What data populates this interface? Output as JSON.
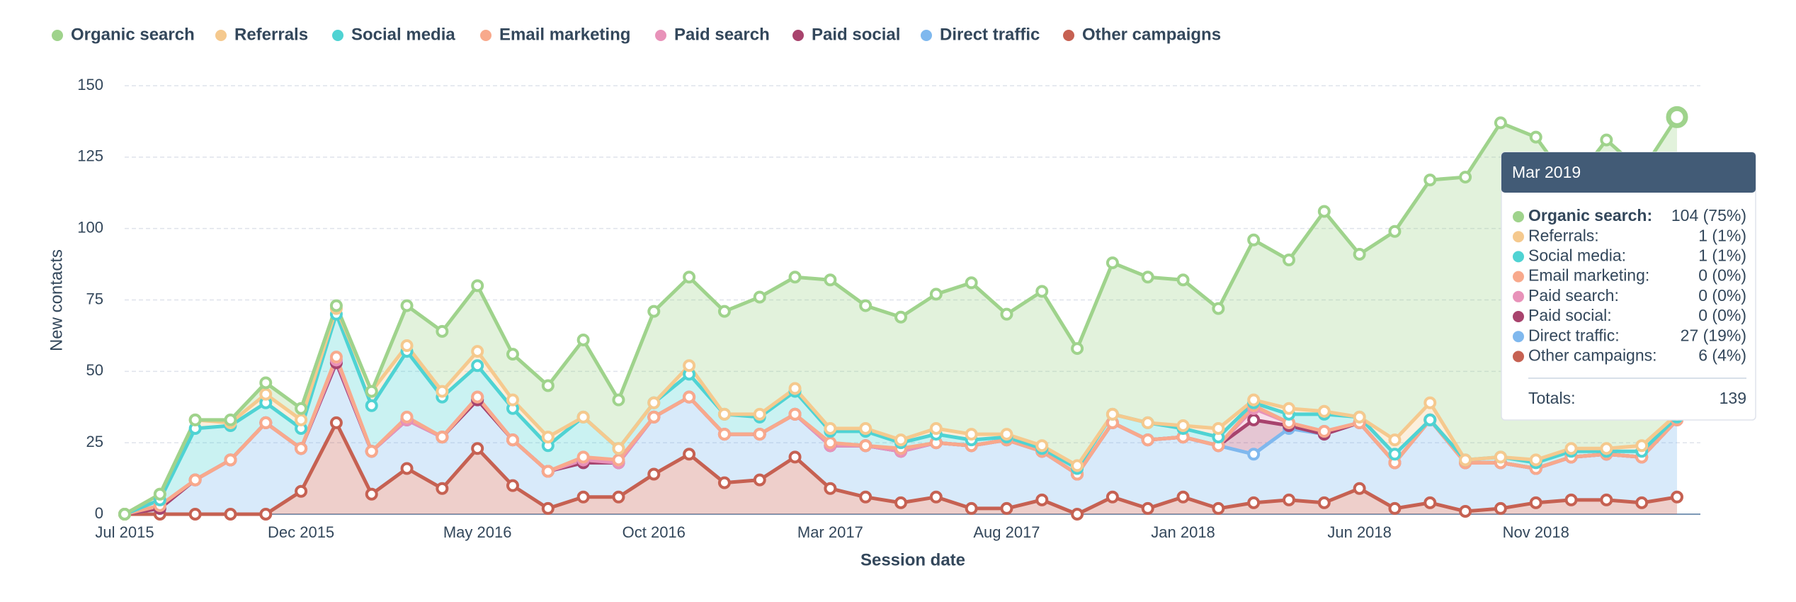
{
  "chart_data": {
    "type": "stacked_area",
    "ylabel": "New contacts",
    "xlabel": "Session date",
    "categories": [
      "Jul 2015",
      null,
      null,
      null,
      null,
      "Dec 2015",
      null,
      null,
      null,
      null,
      "May 2016",
      null,
      null,
      null,
      null,
      "Oct 2016",
      null,
      null,
      null,
      null,
      "Mar 2017",
      null,
      null,
      null,
      null,
      "Aug 2017",
      null,
      null,
      null,
      null,
      "Jan 2018",
      null,
      null,
      null,
      null,
      "Jun 2018",
      null,
      null,
      null,
      null,
      "Nov 2018",
      null,
      null,
      null,
      null
    ],
    "ylim": [
      0,
      150
    ],
    "yticks": [
      0,
      25,
      50,
      75,
      100,
      125,
      150
    ],
    "grid": true,
    "legend": "top-left",
    "series": [
      {
        "name": "Other campaigns",
        "color": "#c66152",
        "values": [
          0,
          0,
          0,
          0,
          0,
          8,
          32,
          7,
          16,
          9,
          23,
          10,
          2,
          6,
          6,
          14,
          21,
          11,
          12,
          20,
          9,
          6,
          4,
          6,
          2,
          2,
          5,
          0,
          6,
          2,
          6,
          2,
          4,
          5,
          4,
          9,
          2,
          4,
          1,
          2,
          4,
          5,
          5,
          4,
          6
        ]
      },
      {
        "name": "Direct traffic",
        "color": "#7fb8ee",
        "values": [
          0,
          2,
          12,
          19,
          32,
          15,
          21,
          15,
          17,
          18,
          17,
          16,
          13,
          12,
          12,
          20,
          20,
          17,
          16,
          15,
          15,
          18,
          18,
          19,
          22,
          24,
          17,
          14,
          26,
          24,
          21,
          22,
          17,
          25,
          24,
          23,
          16,
          29,
          17,
          16,
          12,
          15,
          16,
          16,
          27
        ]
      },
      {
        "name": "Paid social",
        "color": "#a8436d",
        "values": [
          0,
          0,
          0,
          0,
          0,
          0,
          0,
          0,
          0,
          0,
          0,
          0,
          0,
          0,
          0,
          0,
          0,
          0,
          0,
          0,
          0,
          0,
          0,
          0,
          0,
          0,
          0,
          0,
          0,
          0,
          0,
          0,
          12,
          1,
          0,
          0,
          0,
          0,
          0,
          0,
          0,
          0,
          0,
          0,
          0
        ]
      },
      {
        "name": "Paid search",
        "color": "#e892b9",
        "values": [
          0,
          1,
          0,
          0,
          0,
          0,
          1,
          0,
          0,
          0,
          1,
          0,
          0,
          1,
          0,
          0,
          0,
          0,
          0,
          0,
          0,
          0,
          0,
          0,
          0,
          0,
          0,
          0,
          0,
          0,
          0,
          0,
          4,
          1,
          1,
          0,
          0,
          0,
          0,
          0,
          0,
          0,
          0,
          0,
          0
        ]
      },
      {
        "name": "Email marketing",
        "color": "#f8a98c",
        "values": [
          0,
          0,
          0,
          0,
          0,
          0,
          1,
          0,
          1,
          0,
          0,
          0,
          0,
          1,
          1,
          0,
          0,
          0,
          0,
          0,
          1,
          0,
          1,
          0,
          0,
          0,
          0,
          0,
          0,
          0,
          0,
          0,
          1,
          0,
          0,
          0,
          0,
          0,
          0,
          0,
          0,
          0,
          0,
          0,
          0
        ]
      },
      {
        "name": "Social media",
        "color": "#4fd3d3",
        "values": [
          0,
          2,
          18,
          12,
          7,
          7,
          15,
          16,
          23,
          14,
          11,
          11,
          9,
          14,
          4,
          5,
          8,
          7,
          6,
          8,
          4,
          5,
          2,
          3,
          2,
          1,
          1,
          2,
          3,
          6,
          3,
          3,
          1,
          3,
          6,
          2,
          3,
          0,
          1,
          2,
          2,
          2,
          1,
          2,
          1
        ]
      },
      {
        "name": "Referrals",
        "color": "#f5c98e",
        "values": [
          0,
          2,
          3,
          1,
          3,
          3,
          2,
          5,
          2,
          2,
          5,
          3,
          3,
          0,
          0,
          0,
          3,
          0,
          1,
          1,
          1,
          1,
          1,
          2,
          2,
          1,
          1,
          1,
          0,
          0,
          1,
          3,
          1,
          2,
          1,
          0,
          5,
          6,
          0,
          0,
          1,
          1,
          1,
          2,
          1
        ]
      },
      {
        "name": "Organic search",
        "color": "#9fd38c",
        "values": [
          0,
          0,
          0,
          1,
          4,
          4,
          1,
          0,
          14,
          21,
          23,
          16,
          18,
          27,
          17,
          32,
          31,
          36,
          41,
          39,
          52,
          43,
          43,
          47,
          53,
          42,
          54,
          41,
          53,
          51,
          51,
          42,
          56,
          52,
          70,
          57,
          73,
          78,
          99,
          117,
          113,
          92,
          108,
          96,
          104
        ]
      }
    ],
    "tooltip": {
      "title": "Mar 2019",
      "rows": [
        {
          "label": "Organic search:",
          "value": "104 (75%)"
        },
        {
          "label": "Referrals:",
          "value": "1 (1%)"
        },
        {
          "label": "Social media:",
          "value": "1 (1%)"
        },
        {
          "label": "Email marketing:",
          "value": "0 (0%)"
        },
        {
          "label": "Paid search:",
          "value": "0 (0%)"
        },
        {
          "label": "Paid social:",
          "value": "0 (0%)"
        },
        {
          "label": "Direct traffic:",
          "value": "27 (19%)"
        },
        {
          "label": "Other campaigns:",
          "value": "6 (4%)"
        }
      ],
      "total_label": "Totals:",
      "total": "139"
    }
  }
}
